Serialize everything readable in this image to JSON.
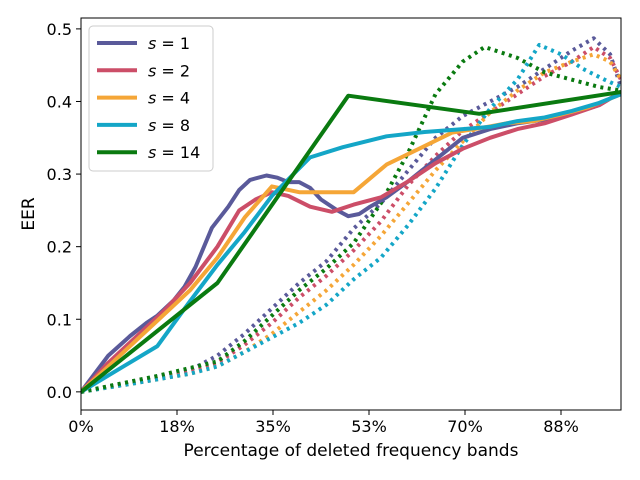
{
  "chart_data": {
    "type": "line",
    "title": "",
    "xlabel": "Percentage of deleted frequency bands",
    "ylabel": "EER",
    "xlim": [
      0,
      99
    ],
    "ylim": [
      -0.025,
      0.515
    ],
    "x_ticks": [
      {
        "value": 0,
        "label": "0%"
      },
      {
        "value": 17.6,
        "label": "18%"
      },
      {
        "value": 35.2,
        "label": "35%"
      },
      {
        "value": 52.8,
        "label": "53%"
      },
      {
        "value": 70.4,
        "label": "70%"
      },
      {
        "value": 88.0,
        "label": "88%"
      }
    ],
    "y_ticks": [
      {
        "value": 0.0,
        "label": "0.0"
      },
      {
        "value": 0.1,
        "label": "0.1"
      },
      {
        "value": 0.2,
        "label": "0.2"
      },
      {
        "value": 0.3,
        "label": "0.3"
      },
      {
        "value": 0.4,
        "label": "0.4"
      },
      {
        "value": 0.5,
        "label": "0.5"
      }
    ],
    "legend_position": "top-left",
    "series": [
      {
        "name": "s = 1",
        "s_value": "1",
        "color": "#5a5a9a",
        "solid": [
          [
            0,
            0
          ],
          [
            5,
            0.05
          ],
          [
            9,
            0.077
          ],
          [
            12,
            0.095
          ],
          [
            14,
            0.105
          ],
          [
            17,
            0.126
          ],
          [
            19,
            0.145
          ],
          [
            21,
            0.172
          ],
          [
            24,
            0.226
          ],
          [
            27,
            0.255
          ],
          [
            29,
            0.278
          ],
          [
            31,
            0.292
          ],
          [
            34,
            0.298
          ],
          [
            36,
            0.295
          ],
          [
            38,
            0.289
          ],
          [
            40,
            0.289
          ],
          [
            42,
            0.281
          ],
          [
            44,
            0.265
          ],
          [
            47,
            0.25
          ],
          [
            49,
            0.242
          ],
          [
            51,
            0.245
          ],
          [
            53,
            0.255
          ],
          [
            56,
            0.268
          ],
          [
            60,
            0.29
          ],
          [
            65,
            0.32
          ],
          [
            70,
            0.35
          ],
          [
            75,
            0.362
          ],
          [
            80,
            0.37
          ],
          [
            85,
            0.375
          ],
          [
            90,
            0.383
          ],
          [
            95,
            0.395
          ],
          [
            99,
            0.413
          ]
        ],
        "dotted": [
          [
            0,
            0
          ],
          [
            10,
            0.015
          ],
          [
            20,
            0.03
          ],
          [
            25,
            0.05
          ],
          [
            30,
            0.08
          ],
          [
            35,
            0.115
          ],
          [
            40,
            0.15
          ],
          [
            45,
            0.18
          ],
          [
            50,
            0.225
          ],
          [
            55,
            0.26
          ],
          [
            60,
            0.305
          ],
          [
            65,
            0.35
          ],
          [
            70,
            0.38
          ],
          [
            75,
            0.4
          ],
          [
            80,
            0.42
          ],
          [
            85,
            0.445
          ],
          [
            90,
            0.47
          ],
          [
            94,
            0.487
          ],
          [
            97,
            0.465
          ],
          [
            99,
            0.42
          ]
        ]
      },
      {
        "name": "s = 2",
        "s_value": "2",
        "color": "#cc4e68",
        "solid": [
          [
            0,
            0
          ],
          [
            5,
            0.04
          ],
          [
            10,
            0.075
          ],
          [
            15,
            0.11
          ],
          [
            20,
            0.15
          ],
          [
            25,
            0.2
          ],
          [
            29,
            0.25
          ],
          [
            32,
            0.265
          ],
          [
            35,
            0.275
          ],
          [
            38,
            0.27
          ],
          [
            42,
            0.255
          ],
          [
            46,
            0.248
          ],
          [
            50,
            0.258
          ],
          [
            55,
            0.268
          ],
          [
            60,
            0.29
          ],
          [
            65,
            0.315
          ],
          [
            70,
            0.335
          ],
          [
            75,
            0.35
          ],
          [
            80,
            0.362
          ],
          [
            85,
            0.37
          ],
          [
            90,
            0.382
          ],
          [
            95,
            0.395
          ],
          [
            99,
            0.413
          ]
        ],
        "dotted": [
          [
            0,
            0
          ],
          [
            10,
            0.013
          ],
          [
            20,
            0.027
          ],
          [
            25,
            0.04
          ],
          [
            30,
            0.065
          ],
          [
            35,
            0.095
          ],
          [
            40,
            0.13
          ],
          [
            45,
            0.16
          ],
          [
            50,
            0.195
          ],
          [
            55,
            0.235
          ],
          [
            60,
            0.285
          ],
          [
            65,
            0.325
          ],
          [
            70,
            0.36
          ],
          [
            75,
            0.385
          ],
          [
            80,
            0.41
          ],
          [
            85,
            0.435
          ],
          [
            90,
            0.455
          ],
          [
            94,
            0.475
          ],
          [
            97,
            0.46
          ],
          [
            99,
            0.43
          ]
        ]
      },
      {
        "name": "s = 4",
        "s_value": "4",
        "color": "#f5a637",
        "solid": [
          [
            0,
            0
          ],
          [
            5,
            0.035
          ],
          [
            10,
            0.07
          ],
          [
            15,
            0.105
          ],
          [
            20,
            0.14
          ],
          [
            25,
            0.185
          ],
          [
            30,
            0.24
          ],
          [
            35,
            0.283
          ],
          [
            40,
            0.275
          ],
          [
            45,
            0.275
          ],
          [
            50,
            0.275
          ],
          [
            56,
            0.313
          ],
          [
            62,
            0.335
          ],
          [
            68,
            0.357
          ],
          [
            73,
            0.363
          ],
          [
            78,
            0.37
          ],
          [
            83,
            0.373
          ],
          [
            88,
            0.382
          ],
          [
            93,
            0.392
          ],
          [
            99,
            0.41
          ]
        ],
        "dotted": [
          [
            0,
            0
          ],
          [
            10,
            0.012
          ],
          [
            20,
            0.025
          ],
          [
            25,
            0.035
          ],
          [
            30,
            0.055
          ],
          [
            35,
            0.08
          ],
          [
            40,
            0.11
          ],
          [
            45,
            0.14
          ],
          [
            50,
            0.175
          ],
          [
            55,
            0.215
          ],
          [
            60,
            0.26
          ],
          [
            65,
            0.305
          ],
          [
            70,
            0.345
          ],
          [
            75,
            0.385
          ],
          [
            80,
            0.415
          ],
          [
            85,
            0.44
          ],
          [
            90,
            0.455
          ],
          [
            94,
            0.465
          ],
          [
            97,
            0.455
          ],
          [
            99,
            0.43
          ]
        ]
      },
      {
        "name": "s = 8",
        "s_value": "8",
        "color": "#14a6c7",
        "solid": [
          [
            0,
            0
          ],
          [
            14,
            0.063
          ],
          [
            20,
            0.125
          ],
          [
            25,
            0.175
          ],
          [
            30,
            0.22
          ],
          [
            35,
            0.27
          ],
          [
            42,
            0.323
          ],
          [
            48,
            0.337
          ],
          [
            56,
            0.352
          ],
          [
            63,
            0.358
          ],
          [
            70,
            0.362
          ],
          [
            75,
            0.365
          ],
          [
            80,
            0.373
          ],
          [
            85,
            0.378
          ],
          [
            90,
            0.387
          ],
          [
            95,
            0.398
          ],
          [
            99,
            0.41
          ]
        ],
        "dotted": [
          [
            0,
            0
          ],
          [
            10,
            0.012
          ],
          [
            20,
            0.025
          ],
          [
            25,
            0.035
          ],
          [
            30,
            0.055
          ],
          [
            35,
            0.075
          ],
          [
            40,
            0.095
          ],
          [
            45,
            0.12
          ],
          [
            50,
            0.155
          ],
          [
            55,
            0.185
          ],
          [
            60,
            0.23
          ],
          [
            65,
            0.28
          ],
          [
            70,
            0.34
          ],
          [
            75,
            0.39
          ],
          [
            80,
            0.43
          ],
          [
            84,
            0.478
          ],
          [
            88,
            0.465
          ],
          [
            92,
            0.445
          ],
          [
            96,
            0.43
          ],
          [
            99,
            0.42
          ]
        ]
      },
      {
        "name": "s = 14",
        "s_value": "14",
        "color": "#0a7a10",
        "solid": [
          [
            0,
            0
          ],
          [
            25,
            0.15
          ],
          [
            49,
            0.408
          ],
          [
            73,
            0.383
          ],
          [
            99,
            0.413
          ]
        ],
        "dotted": [
          [
            0,
            0
          ],
          [
            14,
            0.022
          ],
          [
            25,
            0.042
          ],
          [
            30,
            0.07
          ],
          [
            35,
            0.105
          ],
          [
            40,
            0.14
          ],
          [
            45,
            0.17
          ],
          [
            50,
            0.205
          ],
          [
            55,
            0.26
          ],
          [
            60,
            0.33
          ],
          [
            65,
            0.41
          ],
          [
            70,
            0.455
          ],
          [
            74,
            0.475
          ],
          [
            80,
            0.46
          ],
          [
            85,
            0.44
          ],
          [
            90,
            0.43
          ],
          [
            95,
            0.42
          ],
          [
            99,
            0.415
          ]
        ]
      }
    ]
  }
}
